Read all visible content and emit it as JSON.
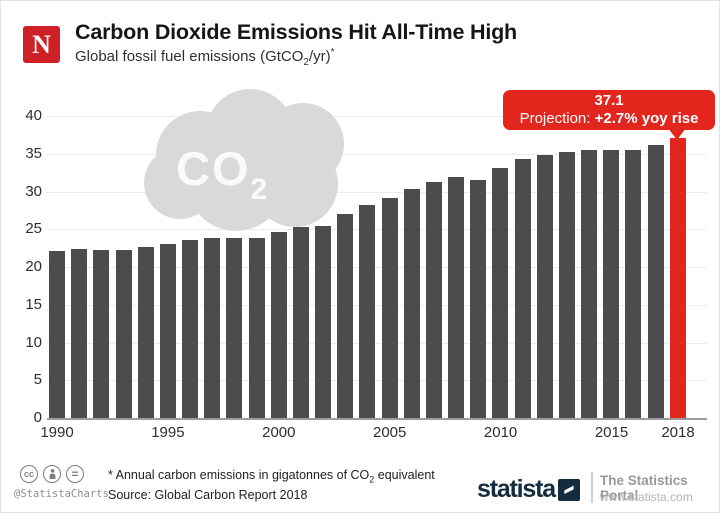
{
  "header": {
    "logo_letter": "N",
    "title": "Carbon Dioxide Emissions Hit All-Time High",
    "subtitle_pre": "Global fossil fuel emissions (GtCO",
    "subtitle_sub": "2",
    "subtitle_post": "/yr)",
    "subtitle_sup": "*"
  },
  "watermark": {
    "text_main": "CO",
    "text_sub": "2"
  },
  "callout": {
    "value": "37.1",
    "label_prefix": "Projection: ",
    "label_bold": "+2.7% yoy rise"
  },
  "chart_data": {
    "type": "bar",
    "title": "Carbon Dioxide Emissions Hit All-Time High",
    "subtitle": "Global fossil fuel emissions (GtCO2/yr)*",
    "ylabel": "GtCO2 per year",
    "ylim": [
      0,
      40
    ],
    "ytick_step": 5,
    "grid": true,
    "categories": [
      1990,
      1991,
      1992,
      1993,
      1994,
      1995,
      1996,
      1997,
      1998,
      1999,
      2000,
      2001,
      2002,
      2003,
      2004,
      2005,
      2006,
      2007,
      2008,
      2009,
      2010,
      2011,
      2012,
      2013,
      2014,
      2015,
      2016,
      2017,
      2018
    ],
    "values": [
      22.1,
      22.4,
      22.2,
      22.2,
      22.6,
      23.1,
      23.6,
      23.9,
      23.8,
      23.9,
      24.6,
      25.3,
      25.5,
      27.0,
      28.2,
      29.2,
      30.4,
      31.2,
      31.9,
      31.5,
      33.1,
      34.3,
      34.9,
      35.3,
      35.5,
      35.5,
      35.5,
      36.2,
      37.1
    ],
    "highlight_category": 2018,
    "bar_color": "#4a4c4e",
    "highlight_color": "#e3261d",
    "annotation": "37.1 Projection: +2.7% yoy rise",
    "xticks": [
      {
        "label": "1990",
        "i": 0
      },
      {
        "label": "1995",
        "i": 5
      },
      {
        "label": "2000",
        "i": 10
      },
      {
        "label": "2005",
        "i": 15
      },
      {
        "label": "2010",
        "i": 20
      },
      {
        "label": "2015",
        "i": 25
      },
      {
        "label": "2018",
        "i": 28
      }
    ]
  },
  "footer": {
    "cc_label": "cc",
    "nd_label": "=",
    "handle": "@StatistaCharts",
    "note_pre": "* Annual carbon emissions in gigatonnes of CO",
    "note_sub": "2",
    "note_post": " equivalent",
    "source": "Source: Global Carbon Report 2018",
    "brand": "statista",
    "portal": "The Statistics Portal",
    "url": "www.statista.com"
  },
  "colors": {
    "bar": "#4a4c4e",
    "accent_red": "#e3261d",
    "logo_red": "#ce2127",
    "brand_navy": "#152b3e",
    "watermark_gray": "#d9d9d9"
  }
}
